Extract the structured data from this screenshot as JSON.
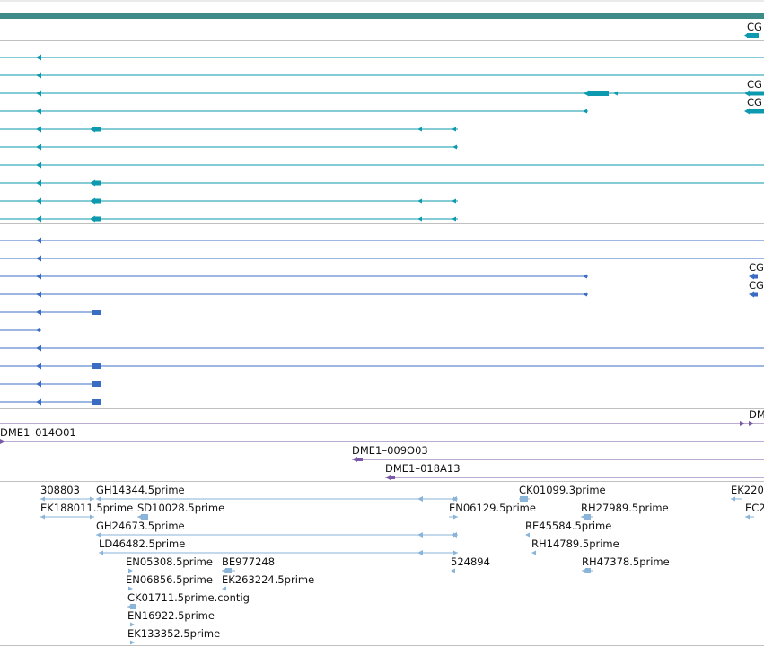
{
  "colors": {
    "top_band": "#3d8c8a",
    "separator": "#c0c0c0",
    "teal": "#0e9aae",
    "blue": "#3b6cc4",
    "purple": "#7a5aa6",
    "est": "#8ab4d8",
    "label": "#111111"
  },
  "labels": {
    "cg_1": "CG",
    "cg_2": "CG",
    "cg_3": "CG",
    "cg_4": "CG",
    "cg_5": "CG",
    "dm_1": "DM",
    "clone_1": "DME1–014O01",
    "clone_2": "DME1–009O03",
    "clone_3": "DME1–018A13"
  },
  "est_labels": [
    "308803",
    "GH14344.5prime",
    "CK01099.3prime",
    "EK220",
    "EK188011.5prime",
    "SD10028.5prime",
    "EN06129.5prime",
    "RH27989.5prime",
    "EC2",
    "GH24673.5prime",
    "RE45584.5prime",
    "LD46482.5prime",
    "RH14789.5prime",
    "EN05308.5prime",
    "BE977248",
    "524894",
    "RH47378.5prime",
    "EN06856.5prime",
    "EK263224.5prime",
    "CK01711.5prime.contig",
    "EN16922.5prime",
    "EK133352.5prime"
  ]
}
